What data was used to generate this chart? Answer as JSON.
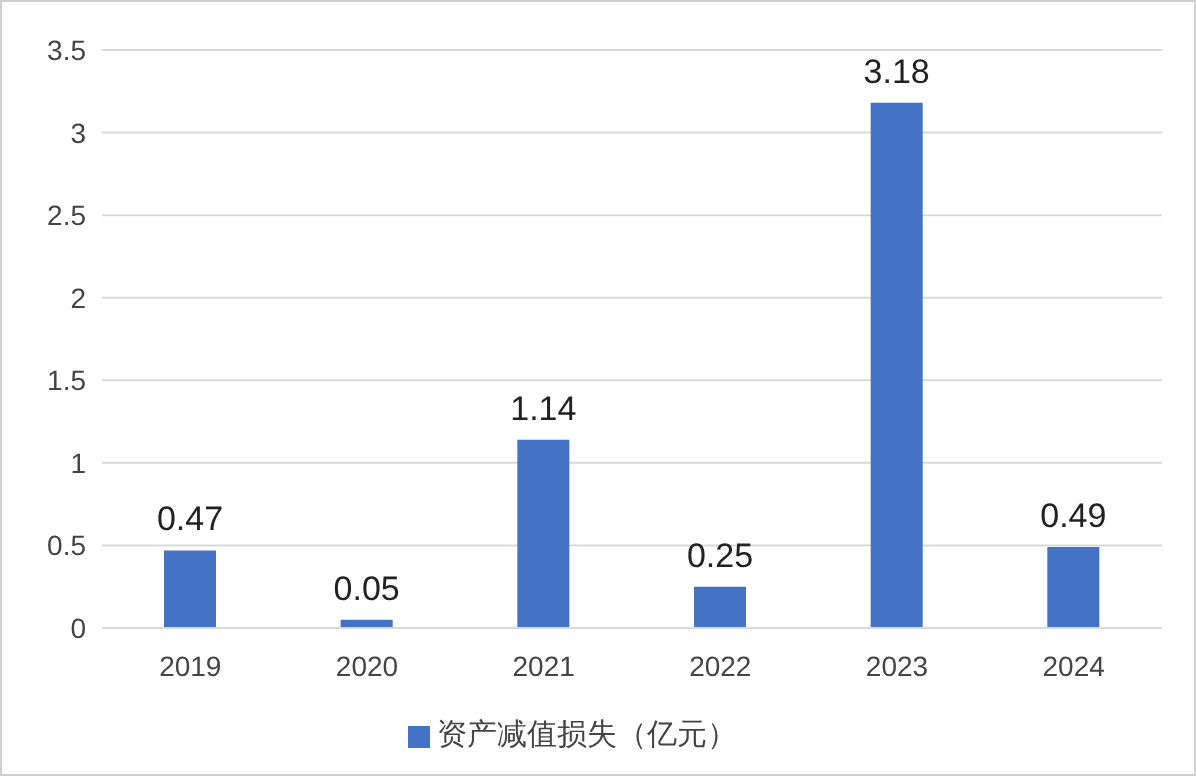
{
  "chart_data": {
    "type": "bar",
    "categories": [
      "2019",
      "2020",
      "2021",
      "2022",
      "2023",
      "2024"
    ],
    "series": [
      {
        "name": "资产减值损失（亿元）",
        "color": "#4472c4",
        "values": [
          0.47,
          0.05,
          1.14,
          0.25,
          3.18,
          0.49
        ]
      }
    ],
    "ylim": [
      0,
      3.5
    ],
    "yticks": [
      0,
      0.5,
      1,
      1.5,
      2,
      2.5,
      3,
      3.5
    ],
    "grid": "y",
    "legend": "bottom",
    "data_labels": true
  }
}
